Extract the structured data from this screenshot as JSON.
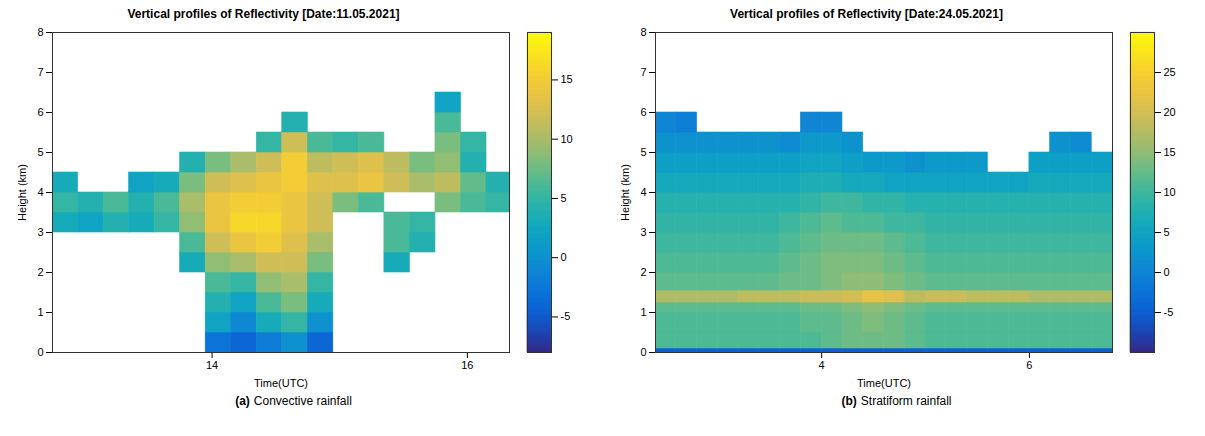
{
  "chart_data": [
    {
      "type": "heatmap",
      "title": "Vertical profiles of Reflectivity [Date:11.05.2021]",
      "panel_label": "(a)",
      "caption": "Convective rainfall",
      "x_label": "Time(UTC)",
      "y_label": "Height (km)",
      "xlim": [
        12.75,
        16.33
      ],
      "xticks": [
        14,
        16
      ],
      "ylim": [
        0,
        8
      ],
      "yticks": [
        0,
        1,
        2,
        3,
        4,
        5,
        6,
        7,
        8
      ],
      "time_edges": [
        12.75,
        12.95,
        13.15,
        13.35,
        13.55,
        13.75,
        13.95,
        14.15,
        14.35,
        14.55,
        14.75,
        14.95,
        15.15,
        15.35,
        15.55,
        15.75,
        15.95,
        16.15,
        16.35
      ],
      "height_edges": [
        0,
        0.5,
        1,
        1.5,
        2,
        2.5,
        3,
        3.5,
        4,
        4.5,
        5,
        5.5,
        6,
        6.5
      ],
      "reflectivity": [
        [
          null,
          null,
          null,
          null,
          null,
          null,
          -3,
          -4,
          -2,
          0,
          -4,
          null,
          null,
          null,
          null,
          null,
          null,
          null
        ],
        [
          null,
          null,
          null,
          null,
          null,
          null,
          2,
          -1,
          3,
          5,
          0,
          null,
          null,
          null,
          null,
          null,
          null,
          null
        ],
        [
          null,
          null,
          null,
          null,
          null,
          null,
          4,
          2,
          6,
          8,
          3,
          null,
          null,
          null,
          null,
          null,
          null,
          null
        ],
        [
          null,
          null,
          null,
          null,
          null,
          null,
          6,
          5,
          9,
          10,
          5,
          null,
          null,
          null,
          null,
          null,
          null,
          null
        ],
        [
          null,
          null,
          null,
          null,
          null,
          3,
          9,
          10,
          12,
          12,
          8,
          null,
          null,
          3,
          null,
          null,
          null,
          null
        ],
        [
          null,
          null,
          null,
          null,
          null,
          6,
          12,
          14,
          15,
          13,
          10,
          null,
          null,
          6,
          4,
          null,
          null,
          null
        ],
        [
          3,
          2,
          4,
          3,
          5,
          9,
          14,
          16,
          16,
          14,
          12,
          null,
          null,
          6,
          5,
          null,
          null,
          null
        ],
        [
          5,
          4,
          6,
          4,
          6,
          10,
          14,
          15,
          15,
          14,
          12,
          8,
          6,
          null,
          null,
          8,
          6,
          5
        ],
        [
          3,
          null,
          null,
          2,
          3,
          8,
          12,
          13,
          14,
          15,
          13,
          13,
          14,
          12,
          10,
          11,
          7,
          4
        ],
        [
          null,
          null,
          null,
          null,
          null,
          4,
          8,
          10,
          12,
          15,
          11,
          12,
          13,
          11,
          8,
          9,
          4,
          null
        ],
        [
          null,
          null,
          null,
          null,
          null,
          null,
          null,
          null,
          5,
          12,
          6,
          5,
          6,
          null,
          null,
          8,
          5,
          null
        ],
        [
          null,
          null,
          null,
          null,
          null,
          null,
          null,
          null,
          null,
          4,
          null,
          null,
          null,
          null,
          null,
          6,
          null,
          null
        ],
        [
          null,
          null,
          null,
          null,
          null,
          null,
          null,
          null,
          null,
          null,
          null,
          null,
          null,
          null,
          null,
          2,
          null,
          null
        ]
      ],
      "colorbar_range": [
        -8,
        19
      ],
      "colorbar_ticks": [
        -5,
        0,
        5,
        10,
        15
      ]
    },
    {
      "type": "heatmap",
      "title": "Vertical profiles of Reflectivity [Date:24.05.2021]",
      "panel_label": "(b)",
      "caption": "Stratiform rainfall",
      "x_label": "Time(UTC)",
      "y_label": "Height (km)",
      "xlim": [
        2.4,
        6.8
      ],
      "xticks": [
        4,
        6
      ],
      "ylim": [
        0,
        8
      ],
      "yticks": [
        0,
        1,
        2,
        3,
        4,
        5,
        6,
        7,
        8
      ],
      "time_edges": [
        2.4,
        2.6,
        2.8,
        3.0,
        3.2,
        3.4,
        3.6,
        3.8,
        4.0,
        4.2,
        4.4,
        4.6,
        4.8,
        5.0,
        5.2,
        5.4,
        5.6,
        5.8,
        6.0,
        6.2,
        6.4,
        6.6,
        6.8
      ],
      "height_edges": [
        0,
        0.1,
        0.5,
        1,
        1.25,
        1.55,
        2,
        2.5,
        3,
        3.5,
        4,
        4.5,
        5,
        5.5,
        6
      ],
      "reflectivity": [
        [
          -5,
          -5,
          -5,
          -5,
          -5,
          -5,
          -5,
          -5,
          -5,
          -5,
          -5,
          -5,
          -5,
          -5,
          -5,
          -5,
          -5,
          -5,
          -5,
          -5,
          -5,
          -5
        ],
        [
          11,
          11,
          11,
          11,
          11,
          11,
          11,
          11,
          12,
          13,
          13,
          13,
          12,
          11,
          11,
          11,
          11,
          11,
          11,
          11,
          11,
          11
        ],
        [
          11,
          11,
          11,
          11,
          11,
          11,
          11,
          12,
          12,
          13,
          14,
          13,
          12,
          11,
          11,
          11,
          11,
          11,
          11,
          11,
          11,
          11
        ],
        [
          12,
          12,
          12,
          12,
          12,
          12,
          12,
          13,
          13,
          14,
          15,
          14,
          13,
          12,
          12,
          12,
          12,
          12,
          12,
          12,
          12,
          12
        ],
        [
          17,
          17,
          17,
          17,
          18,
          18,
          18,
          19,
          19,
          20,
          22,
          21,
          18,
          19,
          19,
          18,
          18,
          18,
          17,
          17,
          17,
          17
        ],
        [
          12,
          12,
          12,
          12,
          12,
          12,
          13,
          13,
          14,
          15,
          15,
          14,
          13,
          12,
          12,
          12,
          12,
          12,
          12,
          12,
          12,
          12
        ],
        [
          11,
          11,
          11,
          11,
          11,
          11,
          12,
          13,
          14,
          14,
          14,
          13,
          12,
          11,
          11,
          11,
          11,
          11,
          11,
          11,
          11,
          11
        ],
        [
          10,
          10,
          10,
          10,
          10,
          10,
          11,
          12,
          13,
          13,
          13,
          12,
          11,
          10,
          10,
          10,
          10,
          10,
          10,
          10,
          10,
          10
        ],
        [
          9,
          9,
          9,
          9,
          9,
          9,
          10,
          11,
          12,
          11,
          11,
          10,
          10,
          9,
          9,
          9,
          9,
          9,
          9,
          9,
          9,
          9
        ],
        [
          8,
          8,
          8,
          8,
          8,
          8,
          8,
          9,
          10,
          10,
          9,
          9,
          8,
          8,
          8,
          8,
          8,
          8,
          8,
          8,
          8,
          8
        ],
        [
          6,
          6,
          6,
          6,
          6,
          6,
          6,
          7,
          7,
          6,
          6,
          5,
          5,
          5,
          5,
          5,
          5,
          5,
          6,
          6,
          6,
          6
        ],
        [
          4,
          4,
          4,
          4,
          4,
          4,
          4,
          5,
          5,
          4,
          3,
          3,
          2,
          3,
          3,
          3,
          null,
          null,
          4,
          4,
          4,
          4
        ],
        [
          2,
          2,
          2,
          2,
          2,
          2,
          1,
          3,
          3,
          2,
          null,
          null,
          null,
          null,
          null,
          null,
          null,
          null,
          null,
          2,
          1,
          null
        ],
        [
          0,
          -1,
          null,
          null,
          null,
          null,
          null,
          0,
          0,
          null,
          null,
          null,
          null,
          null,
          null,
          null,
          null,
          null,
          null,
          null,
          null,
          null
        ]
      ],
      "colorbar_range": [
        -10,
        30
      ],
      "colorbar_ticks": [
        -5,
        0,
        5,
        10,
        15,
        20,
        25
      ]
    }
  ]
}
